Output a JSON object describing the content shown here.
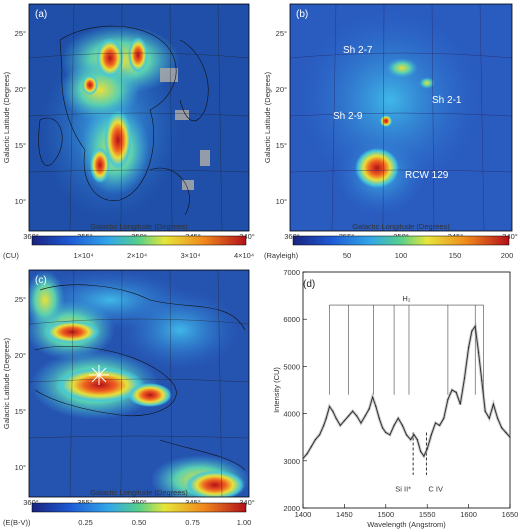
{
  "colors": {
    "map_bg": "#1f4fa8",
    "map_mid": "#3aa5e0",
    "map_hi": "#f4e23a",
    "map_peak": "#b0101a",
    "spectrum_line": "#333333"
  },
  "chart_data": [
    {
      "type": "heatmap",
      "panel": "(a)",
      "xlabel": "Galactic Longitude (Degrees)",
      "ylabel": "Galactic Latitude (Degrees)",
      "xticks": [
        "360°",
        "355°",
        "350°",
        "345°",
        "340°"
      ],
      "yticks": [
        "25°",
        "20°",
        "15°",
        "10°"
      ],
      "xlim": [
        360,
        340
      ],
      "ylim": [
        8,
        27
      ],
      "colorbar": {
        "unit": "(CU)",
        "ticks": [
          "1×10⁴",
          "2×10⁴",
          "3×10⁴",
          "4×10⁴"
        ]
      }
    },
    {
      "type": "heatmap",
      "panel": "(b)",
      "xlabel": "Galactic Longitude (Degrees)",
      "ylabel": "Galactic Latitude (Degrees)",
      "xticks": [
        "360°",
        "355°",
        "350°",
        "345°",
        "340°"
      ],
      "yticks": [
        "25°",
        "20°",
        "15°",
        "10°"
      ],
      "xlim": [
        360,
        340
      ],
      "ylim": [
        8,
        27
      ],
      "annotations": [
        "Sh 2-7",
        "Sh 2-1",
        "Sh 2-9",
        "RCW 129"
      ],
      "colorbar": {
        "unit": "(Rayleigh)",
        "ticks": [
          "50",
          "100",
          "150",
          "200"
        ]
      }
    },
    {
      "type": "heatmap",
      "panel": "(c)",
      "xlabel": "Galactic Longitude (Degrees)",
      "ylabel": "Galactic Latitude (Degrees)",
      "xticks": [
        "360°",
        "355°",
        "350°",
        "345°",
        "340°"
      ],
      "yticks": [
        "25°",
        "20°",
        "15°",
        "10°"
      ],
      "xlim": [
        360,
        340
      ],
      "ylim": [
        8,
        27
      ],
      "colorbar": {
        "unit": "(E(B-V))",
        "ticks": [
          "0.25",
          "0.50",
          "0.75",
          "1.00"
        ]
      }
    },
    {
      "type": "line",
      "panel": "(d)",
      "xlabel": "Wavelength (Angstrom)",
      "ylabel": "Intensity (CU)",
      "xlim": [
        1400,
        1650
      ],
      "ylim": [
        2000,
        7000
      ],
      "xticks": [
        1400,
        1450,
        1500,
        1550,
        1600,
        1650
      ],
      "yticks": [
        2000,
        3000,
        4000,
        5000,
        6000,
        7000
      ],
      "annotations": [
        "H₂",
        "Si II*",
        "C IV"
      ],
      "h2_lines": [
        1432,
        1455,
        1485,
        1510,
        1528,
        1575,
        1608,
        1618
      ],
      "line_markers": [
        1533,
        1549
      ],
      "series": [
        {
          "x": [
            1400,
            1405,
            1410,
            1415,
            1420,
            1425,
            1428,
            1432,
            1436,
            1440,
            1445,
            1450,
            1455,
            1460,
            1465,
            1470,
            1475,
            1480,
            1484,
            1488,
            1492,
            1496,
            1500,
            1505,
            1510,
            1515,
            1520,
            1525,
            1530,
            1534,
            1538,
            1542,
            1546,
            1550,
            1555,
            1560,
            1565,
            1570,
            1575,
            1580,
            1585,
            1590,
            1595,
            1600,
            1604,
            1608,
            1612,
            1616,
            1620,
            1625,
            1630,
            1635,
            1640,
            1645,
            1650
          ],
          "y": [
            3050,
            3150,
            3300,
            3450,
            3550,
            3750,
            3900,
            4150,
            4050,
            3900,
            3750,
            3850,
            3950,
            4050,
            3950,
            3800,
            3950,
            4100,
            4350,
            4150,
            3900,
            3700,
            3600,
            3550,
            3750,
            3900,
            3750,
            3550,
            3450,
            3550,
            3450,
            3200,
            3100,
            3250,
            3550,
            3800,
            3750,
            3900,
            4300,
            4500,
            4450,
            4200,
            4750,
            5400,
            5750,
            5850,
            5300,
            4700,
            4050,
            3900,
            4200,
            3900,
            3700,
            3600,
            3500
          ]
        }
      ]
    }
  ]
}
